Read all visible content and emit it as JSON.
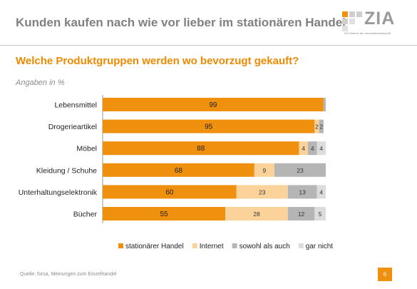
{
  "header": {
    "title": "Kunden kaufen nach wie vor lieber im stationären Handel",
    "logo_text": "ZIA",
    "logo_tagline": "Die Stimme der Immobilienwirtschaft"
  },
  "subtitle": "Welche Produktgruppen werden wo bevorzugt gekauft?",
  "footer": {
    "source": "Quelle: forsa, Meinungen zum Einzelhandel",
    "page_number": "6"
  },
  "colors": {
    "brand_orange": "#f0900f",
    "internet": "#fbd39a",
    "both": "#b5b5b5",
    "none": "#dcdcdc"
  },
  "chart_data": {
    "type": "bar",
    "orientation": "horizontal",
    "stacked": true,
    "unit_label": "Angaben in %",
    "categories": [
      "Lebensmittel",
      "Drogerieartikel",
      "Möbel",
      "Kleidung / Schuhe",
      "Unterhaltungselektronik",
      "Bücher"
    ],
    "series": [
      {
        "name": "stationärer Handel",
        "color": "#f0900f",
        "values": [
          99,
          95,
          88,
          68,
          60,
          55
        ],
        "labels": [
          "99",
          "95",
          "88",
          "68",
          "60",
          "55"
        ]
      },
      {
        "name": "Internet",
        "color": "#fbd39a",
        "values": [
          0,
          2,
          4,
          9,
          23,
          28
        ],
        "labels": [
          "",
          "2",
          "4",
          "9",
          "23",
          "28"
        ]
      },
      {
        "name": "sowohl als auch",
        "color": "#b5b5b5",
        "values": [
          1,
          2,
          4,
          23,
          13,
          12
        ],
        "labels": [
          "",
          "2",
          "4",
          "23",
          "13",
          "12"
        ]
      },
      {
        "name": "gar nicht",
        "color": "#dcdcdc",
        "values": [
          0,
          0,
          4,
          0,
          4,
          5
        ],
        "labels": [
          "",
          "",
          "4",
          "",
          "4",
          "5"
        ]
      }
    ],
    "xlim": [
      0,
      100
    ],
    "grid": false,
    "legend_position": "bottom"
  }
}
